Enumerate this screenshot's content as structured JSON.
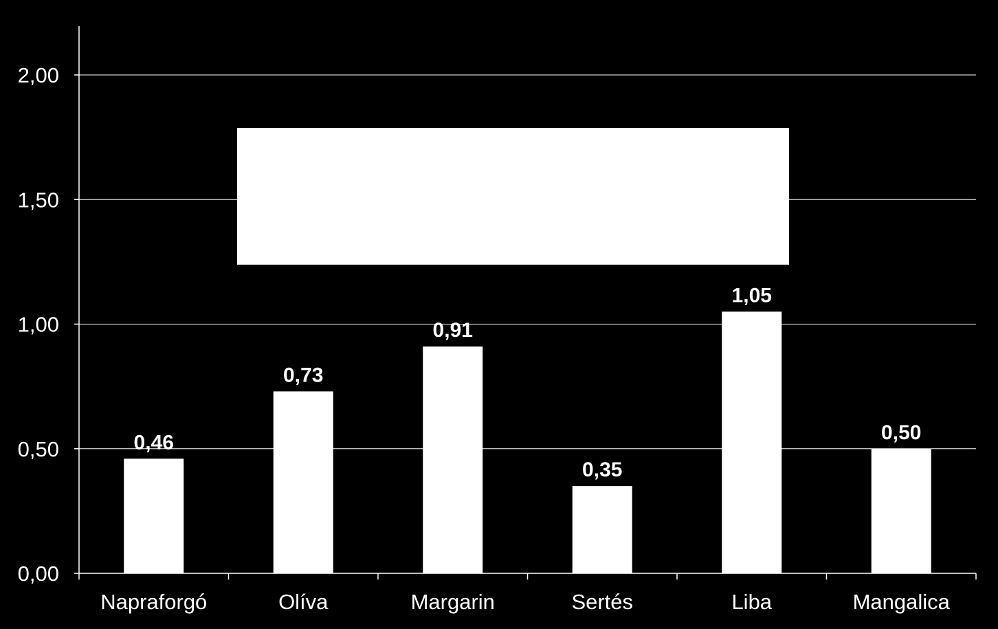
{
  "colors": {
    "background": "#000000",
    "bars": "#ffffff",
    "axis": "#ffffff",
    "grid": "#ffffff",
    "text": "#ffffff"
  },
  "chart_data": {
    "type": "bar",
    "categories": [
      "Napraforgó",
      "Olíva",
      "Margarin",
      "Sertés",
      "Liba",
      "Mangalica"
    ],
    "values": [
      0.46,
      0.73,
      0.91,
      0.35,
      1.05,
      0.5
    ],
    "data_labels": [
      "0,46",
      "0,73",
      "0,91",
      "0,35",
      "1,05",
      "0,50"
    ],
    "y_ticks": [
      {
        "value": 0,
        "label": "0,00"
      },
      {
        "value": 0.5,
        "label": "0,50"
      },
      {
        "value": 1.0,
        "label": "1,00"
      },
      {
        "value": 1.5,
        "label": "1,50"
      },
      {
        "value": 2.0,
        "label": "2,00"
      }
    ],
    "ylim": [
      0,
      2.2
    ],
    "grid": true,
    "legend": false,
    "title": "",
    "xlabel": "",
    "ylabel": "",
    "overlay": "white rectangle (blank)"
  }
}
